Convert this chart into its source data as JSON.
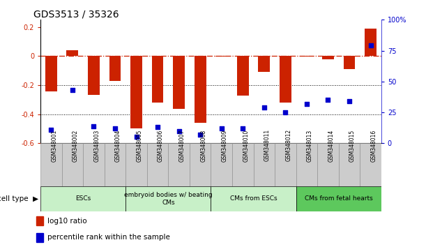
{
  "title": "GDS3513 / 35326",
  "samples": [
    "GSM348001",
    "GSM348002",
    "GSM348003",
    "GSM348004",
    "GSM348005",
    "GSM348006",
    "GSM348007",
    "GSM348008",
    "GSM348009",
    "GSM348010",
    "GSM348011",
    "GSM348012",
    "GSM348013",
    "GSM348014",
    "GSM348015",
    "GSM348016"
  ],
  "log10_ratio": [
    -0.245,
    0.04,
    -0.265,
    -0.17,
    -0.5,
    -0.32,
    -0.365,
    -0.46,
    -0.005,
    -0.27,
    -0.11,
    -0.32,
    -0.005,
    -0.02,
    -0.09,
    0.19
  ],
  "percentile_rank": [
    11,
    43,
    14,
    12,
    5,
    13,
    10,
    7,
    12,
    12,
    29,
    25,
    32,
    35,
    34,
    79
  ],
  "cell_type_groups": [
    {
      "label": "ESCs",
      "start": 0,
      "end": 3
    },
    {
      "label": "embryoid bodies w/ beating\nCMs",
      "start": 4,
      "end": 7
    },
    {
      "label": "CMs from ESCs",
      "start": 8,
      "end": 11
    },
    {
      "label": "CMs from fetal hearts",
      "start": 12,
      "end": 15
    }
  ],
  "group_colors": [
    "#c8f0c8",
    "#c8f0c8",
    "#c8f0c8",
    "#5dc85d"
  ],
  "ylim_left": [
    -0.6,
    0.25
  ],
  "ylim_right": [
    0,
    100
  ],
  "bar_color": "#CC2200",
  "dot_color": "#0000CC",
  "bg_color": "white",
  "tick_fontsize": 7,
  "sample_box_color": "#cccccc",
  "sample_box_edge": "#888888",
  "cell_type_border": "#000000"
}
